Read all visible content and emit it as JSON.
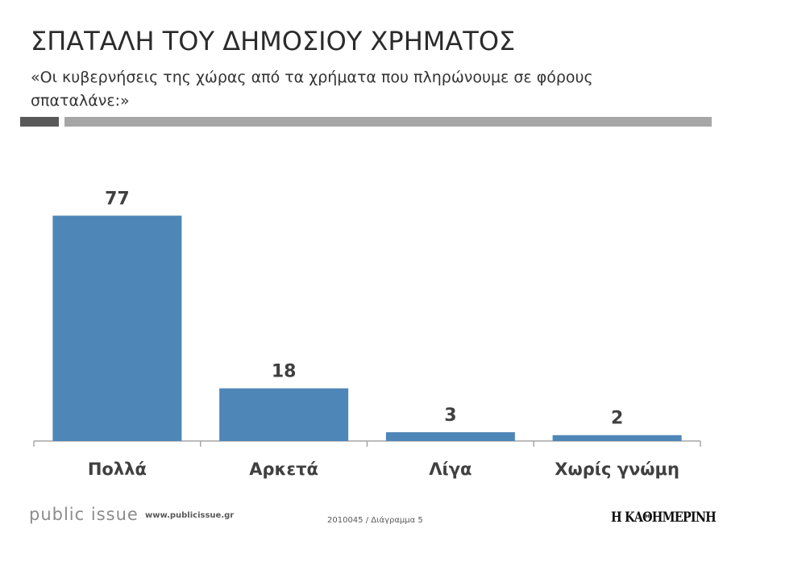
{
  "header": {
    "title": "ΣΠΑΤΑΛΗ ΤΟΥ ΔΗΜΟΣΙΟΥ ΧΡΗΜΑΤΟΣ",
    "subtitle": "«Οι κυβερνήσεις της χώρας από τα χρήματα που πληρώνουμε σε φόρους σπαταλάνε:»"
  },
  "chart_data": {
    "type": "bar",
    "categories": [
      "Πολλά",
      "Αρκετά",
      "Λίγα",
      "Χωρίς γνώμη"
    ],
    "values": [
      77,
      18,
      3,
      2
    ],
    "title": "",
    "xlabel": "",
    "ylabel": "",
    "ylim": [
      0,
      100
    ],
    "grid": false,
    "data_labels": true,
    "bar_color": "#4f86b8"
  },
  "footer": {
    "brand": "public issue",
    "url": "www.publicissue.gr",
    "code": "2010045 / Διάγραμμα 5",
    "logo_text": "Η ΚΑΘΗΜΕΡΙΝΗ"
  },
  "colors": {
    "title": "#2b2b2b",
    "rule_dark": "#595959",
    "rule_light": "#a6a6a6",
    "bar": "#4f86b8"
  }
}
